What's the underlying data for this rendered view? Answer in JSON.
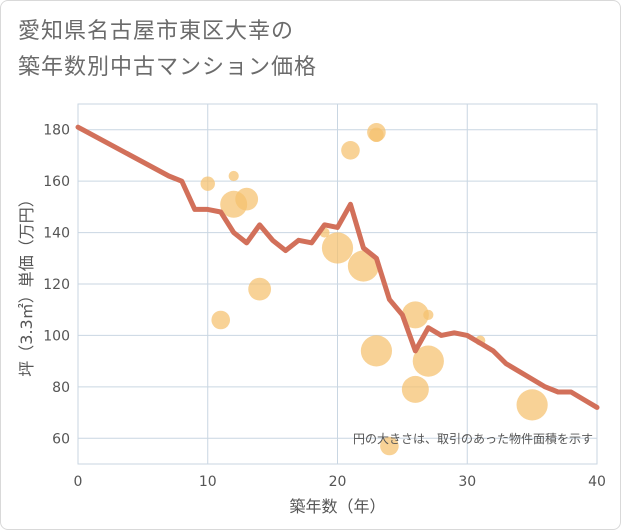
{
  "title_line1": "愛知県名古屋市東区大幸の",
  "title_line2": "築年数別中古マンション価格",
  "colors": {
    "line": "#d2705a",
    "bubble": "#f5c06d",
    "grid": "#c9d6e2",
    "plot_bg": "#ffffff"
  },
  "chart_data": {
    "type": "scatter",
    "xlabel": "築年数（年）",
    "ylabel": "坪（3.3㎡）単価（万円）",
    "annotation": "円の大きさは、取引のあった物件面積を示す",
    "xlim": [
      0,
      40
    ],
    "ylim": [
      50,
      190
    ],
    "x_ticks": [
      0,
      10,
      20,
      30,
      40
    ],
    "y_ticks": [
      60,
      80,
      100,
      120,
      140,
      160,
      180
    ],
    "grid": true,
    "series": [
      {
        "kind": "bubble",
        "points": [
          {
            "x": 10,
            "y": 159,
            "size": 2
          },
          {
            "x": 11,
            "y": 106,
            "size": 3
          },
          {
            "x": 12,
            "y": 162,
            "size": 1
          },
          {
            "x": 12,
            "y": 151,
            "size": 5
          },
          {
            "x": 13,
            "y": 153,
            "size": 4
          },
          {
            "x": 14,
            "y": 118,
            "size": 4
          },
          {
            "x": 19,
            "y": 140,
            "size": 1
          },
          {
            "x": 20,
            "y": 134,
            "size": 6
          },
          {
            "x": 21,
            "y": 172,
            "size": 3
          },
          {
            "x": 22,
            "y": 127,
            "size": 6
          },
          {
            "x": 23,
            "y": 179,
            "size": 3
          },
          {
            "x": 23,
            "y": 178,
            "size": 2
          },
          {
            "x": 23,
            "y": 94,
            "size": 6
          },
          {
            "x": 24,
            "y": 57,
            "size": 3
          },
          {
            "x": 26,
            "y": 108,
            "size": 5
          },
          {
            "x": 26,
            "y": 79,
            "size": 5
          },
          {
            "x": 27,
            "y": 108,
            "size": 1
          },
          {
            "x": 27,
            "y": 90,
            "size": 6
          },
          {
            "x": 31,
            "y": 98,
            "size": 1
          },
          {
            "x": 35,
            "y": 73,
            "size": 6
          }
        ]
      },
      {
        "kind": "line",
        "points": [
          {
            "x": 0,
            "y": 181
          },
          {
            "x": 7,
            "y": 162
          },
          {
            "x": 8,
            "y": 160
          },
          {
            "x": 9,
            "y": 149
          },
          {
            "x": 10,
            "y": 149
          },
          {
            "x": 11,
            "y": 148
          },
          {
            "x": 12,
            "y": 140
          },
          {
            "x": 13,
            "y": 136
          },
          {
            "x": 14,
            "y": 143
          },
          {
            "x": 15,
            "y": 137
          },
          {
            "x": 16,
            "y": 133
          },
          {
            "x": 17,
            "y": 137
          },
          {
            "x": 18,
            "y": 136
          },
          {
            "x": 19,
            "y": 143
          },
          {
            "x": 20,
            "y": 142
          },
          {
            "x": 21,
            "y": 151
          },
          {
            "x": 22,
            "y": 134
          },
          {
            "x": 23,
            "y": 130
          },
          {
            "x": 24,
            "y": 114
          },
          {
            "x": 25,
            "y": 108
          },
          {
            "x": 26,
            "y": 94
          },
          {
            "x": 27,
            "y": 103
          },
          {
            "x": 28,
            "y": 100
          },
          {
            "x": 29,
            "y": 101
          },
          {
            "x": 30,
            "y": 100
          },
          {
            "x": 31,
            "y": 97
          },
          {
            "x": 32,
            "y": 94
          },
          {
            "x": 33,
            "y": 89
          },
          {
            "x": 34,
            "y": 86
          },
          {
            "x": 35,
            "y": 83
          },
          {
            "x": 36,
            "y": 80
          },
          {
            "x": 37,
            "y": 78
          },
          {
            "x": 38,
            "y": 78
          },
          {
            "x": 39,
            "y": 75
          },
          {
            "x": 40,
            "y": 72
          }
        ]
      }
    ]
  }
}
